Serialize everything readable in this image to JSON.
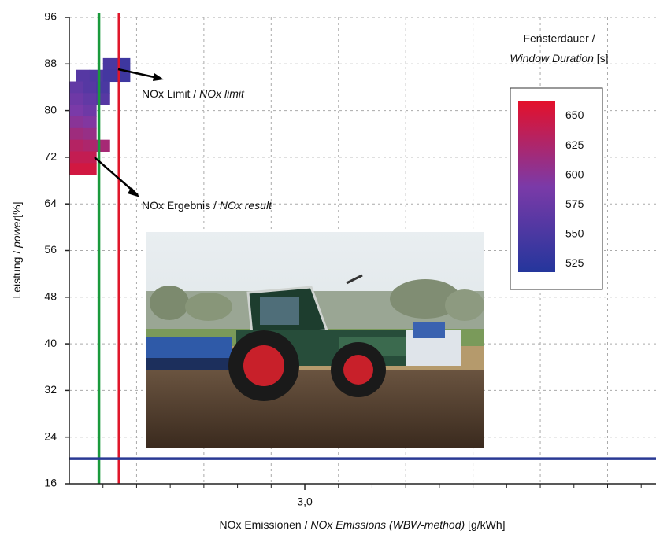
{
  "chart_data": {
    "type": "heatmap",
    "x_label": {
      "text": "NOx Emissionen / ",
      "italic": "NOx Emissions (WBW-method)",
      "unit": " [g/kWh]"
    },
    "y_label": {
      "text": "Leistung / ",
      "italic": "power",
      "unit": "[%]"
    },
    "xlim": [
      1.25,
      5.61
    ],
    "ylim": [
      16,
      96
    ],
    "xticks": [
      {
        "value": 3.0,
        "label": "3,0"
      }
    ],
    "xminorticks": [
      1.5,
      1.75,
      2.0,
      2.25,
      2.5,
      2.75,
      3.25,
      3.5,
      3.75,
      4.0,
      4.25,
      4.5,
      4.75,
      5.0,
      5.25,
      5.5
    ],
    "xgrid": [
      1.75,
      2.25,
      2.75,
      3.25,
      3.75,
      4.25,
      4.75,
      5.25
    ],
    "yticks": [
      16,
      24,
      32,
      40,
      48,
      56,
      64,
      72,
      80,
      88,
      96
    ],
    "grid": true,
    "cells": {
      "x": [
        1.55,
        1.65,
        1.35,
        1.45,
        1.55,
        1.65,
        1.3,
        1.4,
        1.5,
        1.3,
        1.4,
        1.5,
        1.3,
        1.4,
        1.3,
        1.4,
        1.3,
        1.4,
        1.3,
        1.4,
        1.5,
        1.3,
        1.4,
        1.3,
        1.4
      ],
      "y": [
        88,
        88,
        86,
        86,
        86,
        86,
        84,
        84,
        84,
        82,
        82,
        82,
        80,
        80,
        78,
        78,
        76,
        76,
        74,
        74,
        74,
        72,
        72,
        70,
        70
      ],
      "values": [
        550,
        540,
        560,
        555,
        545,
        540,
        570,
        560,
        550,
        580,
        570,
        560,
        590,
        580,
        600,
        595,
        615,
        610,
        630,
        625,
        620,
        640,
        640,
        650,
        650
      ],
      "width": 0.1,
      "height": 2
    },
    "limit_line": {
      "x": 1.47,
      "color": "#1a9a3c"
    },
    "result_line": {
      "x": 1.62,
      "color": "#e0162b"
    },
    "reference_line": {
      "y": 20.3,
      "color": "#2a3a94"
    },
    "annotations": [
      {
        "text": "NOx  Limit / ",
        "italic": "NOx limit"
      },
      {
        "text": "NOx Ergebnis / ",
        "italic": "NOx result"
      }
    ],
    "colorbar": {
      "title": "Fensterdauer /",
      "title_italic": "Window Duration",
      "title_unit": " [s]",
      "clim": [
        518,
        663
      ],
      "ticks": [
        525,
        550,
        575,
        600,
        625,
        650
      ],
      "colormap": [
        "#24369c",
        "#7b3aa8",
        "#e4102a"
      ]
    }
  }
}
